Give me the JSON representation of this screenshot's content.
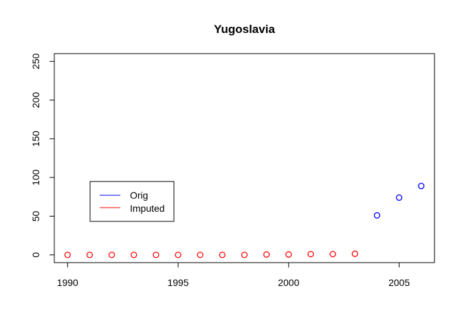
{
  "chart_data": {
    "type": "scatter",
    "title": "Yugoslavia",
    "xlabel": "",
    "ylabel": "",
    "xlim": [
      1989.4,
      2006.6
    ],
    "ylim": [
      -10,
      260
    ],
    "x_ticks": [
      1990,
      1995,
      2000,
      2005
    ],
    "y_ticks": [
      0,
      50,
      100,
      150,
      200,
      250
    ],
    "grid": false,
    "legend_position": "middle-left",
    "series": [
      {
        "name": "Orig",
        "color": "#0000ff",
        "marker": "open-circle",
        "points": [
          {
            "x": 2004,
            "y": 51
          },
          {
            "x": 2005,
            "y": 74
          },
          {
            "x": 2006,
            "y": 89
          }
        ]
      },
      {
        "name": "Imputed",
        "color": "#ff0000",
        "marker": "open-circle",
        "points": [
          {
            "x": 1990,
            "y": 0
          },
          {
            "x": 1991,
            "y": 0
          },
          {
            "x": 1992,
            "y": 0
          },
          {
            "x": 1993,
            "y": 0
          },
          {
            "x": 1994,
            "y": 0
          },
          {
            "x": 1995,
            "y": 0
          },
          {
            "x": 1996,
            "y": 0
          },
          {
            "x": 1997,
            "y": 0
          },
          {
            "x": 1998,
            "y": 0
          },
          {
            "x": 1999,
            "y": 0.5
          },
          {
            "x": 2000,
            "y": 0.5
          },
          {
            "x": 2001,
            "y": 1
          },
          {
            "x": 2002,
            "y": 1
          },
          {
            "x": 2003,
            "y": 1.5
          }
        ]
      }
    ]
  }
}
